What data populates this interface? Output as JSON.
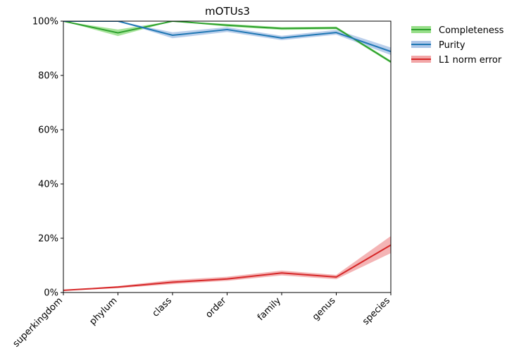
{
  "chart_data": {
    "type": "line",
    "title": "mOTUs3",
    "xlabel": "",
    "ylabel": "",
    "categories": [
      "superkingdom",
      "phylum",
      "class",
      "order",
      "family",
      "genus",
      "species"
    ],
    "ylim": [
      0,
      100
    ],
    "yticks": [
      "0%",
      "20%",
      "40%",
      "60%",
      "80%",
      "100%"
    ],
    "grid": false,
    "legend_position": "outside-top-right",
    "series": [
      {
        "name": "Completeness",
        "color": "#2ca02c",
        "band_color": "#98df8a",
        "values": [
          100,
          95.7,
          100,
          98.5,
          97.3,
          97.5,
          85.0
        ],
        "band_low": [
          100,
          94.5,
          100,
          98.0,
          96.8,
          97.0,
          84.5
        ],
        "band_high": [
          100,
          96.9,
          100,
          99.0,
          97.8,
          98.0,
          85.5
        ]
      },
      {
        "name": "Purity",
        "color": "#1f77b4",
        "band_color": "#aec7e8",
        "values": [
          100,
          100,
          94.8,
          96.9,
          93.8,
          95.8,
          88.8
        ],
        "band_low": [
          100,
          100,
          93.7,
          96.0,
          93.0,
          95.0,
          87.5
        ],
        "band_high": [
          100,
          100,
          95.9,
          97.8,
          94.6,
          96.8,
          90.3
        ]
      },
      {
        "name": "L1 norm error",
        "color": "#d62728",
        "band_color": "#f2a7a8",
        "values": [
          0.8,
          2.0,
          3.8,
          5.0,
          7.2,
          5.7,
          17.5
        ],
        "band_low": [
          0.7,
          1.6,
          3.1,
          4.3,
          6.3,
          4.9,
          14.5
        ],
        "band_high": [
          0.9,
          2.4,
          4.6,
          5.8,
          8.1,
          6.5,
          20.8
        ]
      }
    ]
  }
}
